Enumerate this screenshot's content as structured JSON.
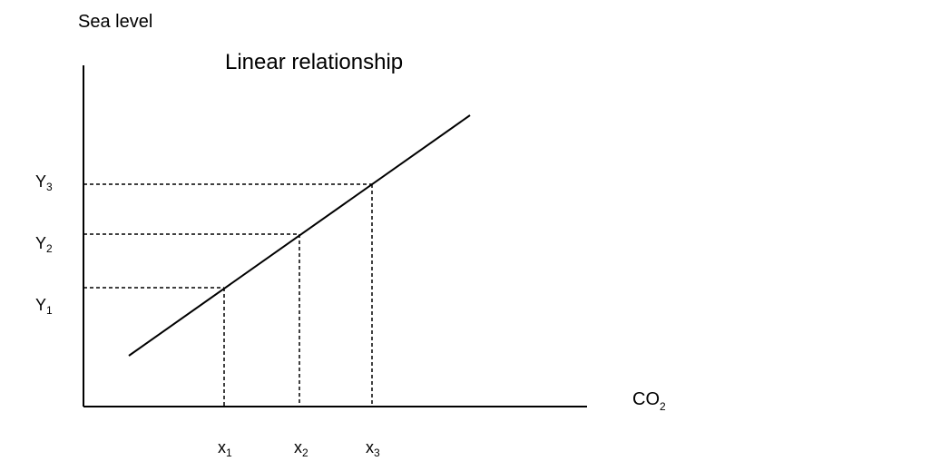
{
  "diagram": {
    "title": "Linear relationship",
    "y_axis_label": "Sea level",
    "x_axis_label": {
      "main": "CO",
      "sub": "2"
    },
    "points": [
      {
        "x_label": {
          "main": "x",
          "sub": "1"
        },
        "y_label": {
          "main": "Y",
          "sub": "1"
        }
      },
      {
        "x_label": {
          "main": "x",
          "sub": "2"
        },
        "y_label": {
          "main": "Y",
          "sub": "2"
        }
      },
      {
        "x_label": {
          "main": "x",
          "sub": "3"
        },
        "y_label": {
          "main": "Y",
          "sub": "3"
        }
      }
    ],
    "line_type": "linear",
    "colors": {
      "line": "#000000",
      "background": "#ffffff"
    }
  }
}
